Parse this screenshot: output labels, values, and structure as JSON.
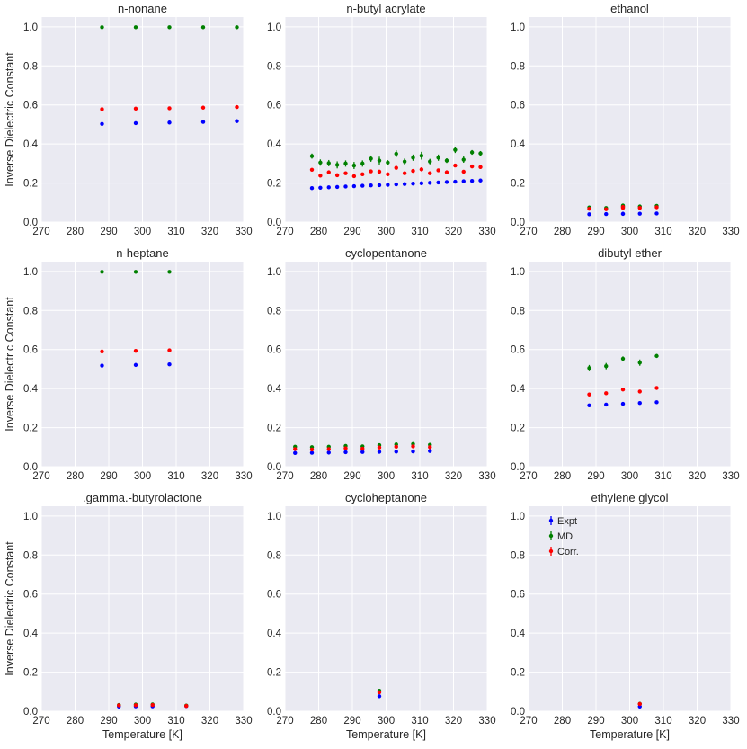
{
  "colors": {
    "Expt": "#0000ff",
    "MD": "#008000",
    "Corr.": "#ff0000",
    "background": "#eaeaf2",
    "grid": "#ffffff"
  },
  "shared": {
    "xlabel": "Temperature [K]",
    "ylabel": "Inverse Dielectric Constant",
    "xlim": [
      270,
      330
    ],
    "ylim": [
      0,
      1.05
    ],
    "xticks": [
      "270",
      "280",
      "290",
      "300",
      "310",
      "320",
      "330"
    ],
    "yticks": [
      "0.0",
      "0.2",
      "0.4",
      "0.6",
      "0.8",
      "1.0"
    ],
    "legend": [
      "Expt",
      "MD",
      "Corr."
    ]
  },
  "chart_data": [
    {
      "type": "scatter",
      "title": "n-nonane",
      "x": [
        288,
        298,
        308,
        318,
        328
      ],
      "series": [
        {
          "name": "Expt",
          "values": [
            0.503,
            0.507,
            0.51,
            0.513,
            0.517
          ],
          "err": [
            0.004,
            0.004,
            0.004,
            0.004,
            0.004
          ]
        },
        {
          "name": "MD",
          "values": [
            0.998,
            0.998,
            0.998,
            0.998,
            0.998
          ],
          "err": [
            0.004,
            0.004,
            0.004,
            0.004,
            0.004
          ]
        },
        {
          "name": "Corr.",
          "values": [
            0.578,
            0.581,
            0.583,
            0.586,
            0.589
          ],
          "err": [
            0.005,
            0.005,
            0.005,
            0.005,
            0.005
          ]
        }
      ]
    },
    {
      "type": "scatter",
      "title": "n-butyl acrylate",
      "x": [
        278,
        280.5,
        283,
        285.5,
        288,
        290.5,
        293,
        295.5,
        298,
        300.5,
        303,
        305.5,
        308,
        310.5,
        313,
        315.5,
        318,
        320.5,
        323,
        325.5,
        328
      ],
      "series": [
        {
          "name": "Expt",
          "values": [
            0.174,
            0.176,
            0.178,
            0.18,
            0.182,
            0.184,
            0.186,
            0.188,
            0.189,
            0.191,
            0.193,
            0.195,
            0.197,
            0.199,
            0.201,
            0.203,
            0.205,
            0.207,
            0.209,
            0.211,
            0.213
          ],
          "err": [
            0.003,
            0.003,
            0.003,
            0.003,
            0.003,
            0.003,
            0.003,
            0.003,
            0.003,
            0.003,
            0.003,
            0.003,
            0.003,
            0.003,
            0.003,
            0.003,
            0.003,
            0.003,
            0.003,
            0.003,
            0.003
          ]
        },
        {
          "name": "MD",
          "values": [
            0.338,
            0.305,
            0.302,
            0.293,
            0.3,
            0.29,
            0.3,
            0.325,
            0.315,
            0.305,
            0.35,
            0.31,
            0.33,
            0.34,
            0.31,
            0.33,
            0.315,
            0.37,
            0.32,
            0.357,
            0.352
          ],
          "err": [
            0.013,
            0.016,
            0.016,
            0.018,
            0.016,
            0.018,
            0.016,
            0.016,
            0.02,
            0.012,
            0.018,
            0.016,
            0.016,
            0.02,
            0.014,
            0.016,
            0.012,
            0.016,
            0.016,
            0.012,
            0.012
          ]
        },
        {
          "name": "Corr.",
          "values": [
            0.268,
            0.238,
            0.255,
            0.24,
            0.25,
            0.235,
            0.245,
            0.26,
            0.258,
            0.245,
            0.278,
            0.25,
            0.262,
            0.27,
            0.25,
            0.265,
            0.255,
            0.29,
            0.258,
            0.285,
            0.282
          ],
          "err": [
            0.006,
            0.008,
            0.008,
            0.008,
            0.008,
            0.008,
            0.008,
            0.008,
            0.01,
            0.006,
            0.008,
            0.008,
            0.008,
            0.01,
            0.006,
            0.008,
            0.006,
            0.008,
            0.008,
            0.006,
            0.006
          ]
        }
      ]
    },
    {
      "type": "scatter",
      "title": "ethanol",
      "x": [
        288,
        293,
        298,
        298,
        303,
        308
      ],
      "series": [
        {
          "name": "Expt",
          "values": [
            0.04,
            0.041,
            0.042,
            0.042,
            0.043,
            0.044
          ],
          "err": [
            0.002,
            0.002,
            0.002,
            0.002,
            0.002,
            0.002
          ]
        },
        {
          "name": "MD",
          "values": [
            0.075,
            0.072,
            0.085,
            0.08,
            0.08,
            0.083
          ],
          "err": [
            0.005,
            0.005,
            0.006,
            0.005,
            0.005,
            0.005
          ]
        },
        {
          "name": "Corr.",
          "values": [
            0.068,
            0.066,
            0.078,
            0.073,
            0.073,
            0.076
          ],
          "err": [
            0.005,
            0.005,
            0.005,
            0.005,
            0.005,
            0.005
          ]
        }
      ]
    },
    {
      "type": "scatter",
      "title": "n-heptane",
      "x": [
        288,
        298,
        308
      ],
      "series": [
        {
          "name": "Expt",
          "values": [
            0.518,
            0.521,
            0.524
          ],
          "err": [
            0.004,
            0.004,
            0.004
          ]
        },
        {
          "name": "MD",
          "values": [
            0.998,
            0.998,
            0.998
          ],
          "err": [
            0.004,
            0.004,
            0.004
          ]
        },
        {
          "name": "Corr.",
          "values": [
            0.59,
            0.593,
            0.596
          ],
          "err": [
            0.005,
            0.005,
            0.005
          ]
        }
      ]
    },
    {
      "type": "scatter",
      "title": "cyclopentanone",
      "x": [
        273,
        278,
        283,
        288,
        293,
        298,
        303,
        308,
        313
      ],
      "series": [
        {
          "name": "Expt",
          "values": [
            0.07,
            0.071,
            0.072,
            0.074,
            0.075,
            0.076,
            0.077,
            0.078,
            0.08
          ],
          "err": [
            0.002,
            0.002,
            0.002,
            0.002,
            0.002,
            0.002,
            0.002,
            0.002,
            0.002
          ]
        },
        {
          "name": "MD",
          "values": [
            0.102,
            0.1,
            0.102,
            0.106,
            0.104,
            0.11,
            0.114,
            0.116,
            0.112
          ],
          "err": [
            0.006,
            0.006,
            0.006,
            0.006,
            0.006,
            0.007,
            0.007,
            0.007,
            0.007
          ]
        },
        {
          "name": "Corr.",
          "values": [
            0.09,
            0.088,
            0.09,
            0.094,
            0.092,
            0.098,
            0.102,
            0.104,
            0.1
          ],
          "err": [
            0.004,
            0.004,
            0.004,
            0.004,
            0.004,
            0.004,
            0.004,
            0.004,
            0.004
          ]
        }
      ]
    },
    {
      "type": "scatter",
      "title": "dibutyl ether",
      "x": [
        288,
        293,
        298,
        303,
        308
      ],
      "series": [
        {
          "name": "Expt",
          "values": [
            0.314,
            0.318,
            0.322,
            0.326,
            0.33
          ],
          "err": [
            0.008,
            0.008,
            0.008,
            0.008,
            0.008
          ]
        },
        {
          "name": "MD",
          "values": [
            0.505,
            0.515,
            0.553,
            0.533,
            0.567
          ],
          "err": [
            0.016,
            0.016,
            0.012,
            0.016,
            0.01
          ]
        },
        {
          "name": "Corr.",
          "values": [
            0.37,
            0.376,
            0.395,
            0.385,
            0.403
          ],
          "err": [
            0.01,
            0.008,
            0.006,
            0.008,
            0.006
          ]
        }
      ]
    },
    {
      "type": "scatter",
      "title": ".gamma.-butyrolactone",
      "x": [
        293,
        298,
        303,
        313
      ],
      "series": [
        {
          "name": "Expt",
          "values": [
            0.024,
            0.025,
            0.025,
            0.026
          ],
          "err": [
            0.001,
            0.001,
            0.001,
            0.001
          ]
        },
        {
          "name": "MD",
          "values": [
            0.032,
            0.034,
            0.035,
            0.029
          ],
          "err": [
            0.003,
            0.003,
            0.003,
            0.003
          ]
        },
        {
          "name": "Corr.",
          "values": [
            0.03,
            0.031,
            0.032,
            0.027
          ],
          "err": [
            0.003,
            0.003,
            0.003,
            0.003
          ]
        }
      ]
    },
    {
      "type": "scatter",
      "title": "cycloheptanone",
      "x": [
        298
      ],
      "series": [
        {
          "name": "Expt",
          "values": [
            0.077
          ],
          "err": [
            0.002
          ]
        },
        {
          "name": "MD",
          "values": [
            0.105
          ],
          "err": [
            0.006
          ]
        },
        {
          "name": "Corr.",
          "values": [
            0.097
          ],
          "err": [
            0.005
          ]
        }
      ]
    },
    {
      "type": "scatter",
      "title": "ethylene glycol",
      "legend": "top-left",
      "x": [
        303
      ],
      "series": [
        {
          "name": "Expt",
          "values": [
            0.024
          ],
          "err": [
            0.001
          ]
        },
        {
          "name": "MD",
          "values": [
            0.038
          ],
          "err": [
            0.003
          ]
        },
        {
          "name": "Corr.",
          "values": [
            0.037
          ],
          "err": [
            0.003
          ]
        }
      ]
    }
  ]
}
